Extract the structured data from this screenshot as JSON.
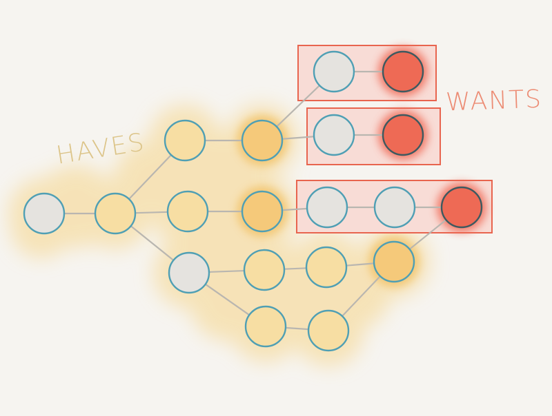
{
  "labels": {
    "haves": "HAVES",
    "wants": "WANTS"
  },
  "colors": {
    "background": "#f6f4f0",
    "have_blob": "#f6d58a",
    "have_blob_dark": "#f2c062",
    "have_fill": "#f7dea3",
    "have_fill_dark": "#f5c97a",
    "neutral_fill": "#e5e3df",
    "want_fill": "#ee6a55",
    "want_blob": "#f06a56",
    "want_box_fill": "#f8dcd6",
    "want_box_stroke": "#e8644e",
    "node_stroke": "#4f9fb4",
    "edge": "#b9b6b0",
    "haves_text": "#dcc488",
    "wants_text": "#ec8b73"
  },
  "diagram": {
    "nodes": [
      {
        "id": "n1",
        "kind": "neutral"
      },
      {
        "id": "n2",
        "kind": "have"
      },
      {
        "id": "n3",
        "kind": "have"
      },
      {
        "id": "n4",
        "kind": "have-dark"
      },
      {
        "id": "n5",
        "kind": "neutral"
      },
      {
        "id": "n6",
        "kind": "want"
      },
      {
        "id": "n7",
        "kind": "neutral"
      },
      {
        "id": "n8",
        "kind": "want"
      },
      {
        "id": "n9",
        "kind": "have"
      },
      {
        "id": "n10",
        "kind": "have-dark"
      },
      {
        "id": "n11",
        "kind": "neutral"
      },
      {
        "id": "n12",
        "kind": "neutral"
      },
      {
        "id": "n13",
        "kind": "want"
      },
      {
        "id": "n14",
        "kind": "neutral"
      },
      {
        "id": "n15",
        "kind": "have"
      },
      {
        "id": "n16",
        "kind": "have"
      },
      {
        "id": "n17",
        "kind": "have-dark"
      },
      {
        "id": "n18",
        "kind": "have"
      },
      {
        "id": "n19",
        "kind": "have"
      }
    ],
    "edges": [
      [
        "n1",
        "n2"
      ],
      [
        "n2",
        "n3"
      ],
      [
        "n2",
        "n9"
      ],
      [
        "n2",
        "n14"
      ],
      [
        "n3",
        "n4"
      ],
      [
        "n4",
        "n5"
      ],
      [
        "n4",
        "n7"
      ],
      [
        "n5",
        "n6"
      ],
      [
        "n7",
        "n8"
      ],
      [
        "n9",
        "n10"
      ],
      [
        "n10",
        "n11"
      ],
      [
        "n11",
        "n12"
      ],
      [
        "n12",
        "n13"
      ],
      [
        "n14",
        "n15"
      ],
      [
        "n14",
        "n18"
      ],
      [
        "n15",
        "n16"
      ],
      [
        "n16",
        "n17"
      ],
      [
        "n18",
        "n19"
      ],
      [
        "n19",
        "n17"
      ],
      [
        "n17",
        "n13"
      ]
    ],
    "want_groups": [
      {
        "id": "want-group-1",
        "nodes": [
          "n5",
          "n6"
        ]
      },
      {
        "id": "want-group-2",
        "nodes": [
          "n7",
          "n8"
        ]
      },
      {
        "id": "want-group-3",
        "nodes": [
          "n11",
          "n12",
          "n13"
        ]
      }
    ]
  }
}
